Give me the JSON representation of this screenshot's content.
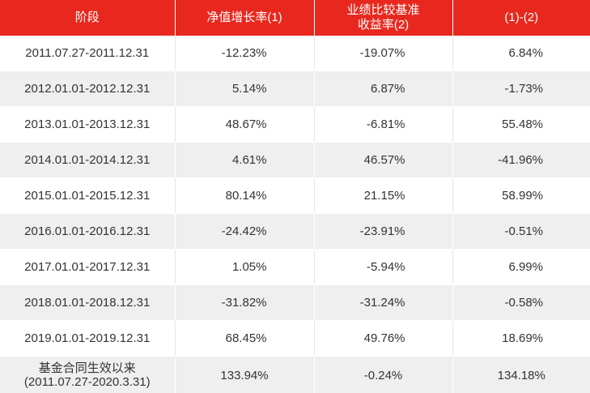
{
  "table": {
    "headers": [
      {
        "line1": "阶段",
        "line2": ""
      },
      {
        "line1": "净值增长率(1)",
        "line2": ""
      },
      {
        "line1": "业绩比较基准",
        "line2": "收益率(2)"
      },
      {
        "line1": "(1)-(2)",
        "line2": ""
      }
    ],
    "rows": [
      {
        "period": "2011.07.27-2011.12.31",
        "nav": "-12.23%",
        "bench": "-19.07%",
        "diff": "6.84%"
      },
      {
        "period": "2012.01.01-2012.12.31",
        "nav": "5.14%",
        "bench": "6.87%",
        "diff": "-1.73%"
      },
      {
        "period": "2013.01.01-2013.12.31",
        "nav": "48.67%",
        "bench": "-6.81%",
        "diff": "55.48%"
      },
      {
        "period": "2014.01.01-2014.12.31",
        "nav": "4.61%",
        "bench": "46.57%",
        "diff": "-41.96%"
      },
      {
        "period": "2015.01.01-2015.12.31",
        "nav": "80.14%",
        "bench": "21.15%",
        "diff": "58.99%"
      },
      {
        "period": "2016.01.01-2016.12.31",
        "nav": "-24.42%",
        "bench": "-23.91%",
        "diff": "-0.51%"
      },
      {
        "period": "2017.01.01-2017.12.31",
        "nav": "1.05%",
        "bench": "-5.94%",
        "diff": "6.99%"
      },
      {
        "period": "2018.01.01-2018.12.31",
        "nav": "-31.82%",
        "bench": "-31.24%",
        "diff": "-0.58%"
      },
      {
        "period": "2019.01.01-2019.12.31",
        "nav": "68.45%",
        "bench": "49.76%",
        "diff": "18.69%"
      }
    ],
    "summary": {
      "period_line1": "基金合同生效以来",
      "period_line2": "(2011.07.27-2020.3.31)",
      "nav": "133.94%",
      "bench": "-0.24%",
      "diff": "134.18%"
    }
  },
  "colors": {
    "header_bg": "#e8281e",
    "header_text": "#ffffff",
    "row_alt_bg": "#efefef",
    "text": "#333333"
  }
}
